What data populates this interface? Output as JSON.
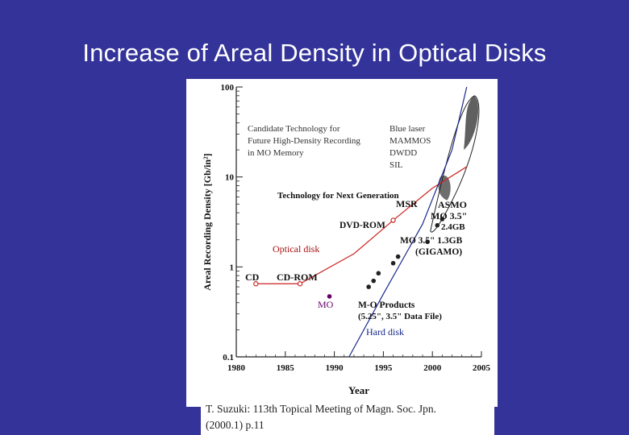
{
  "title": "Increase of Areal Density in Optical Disks",
  "citation": {
    "line1": "T. Suzuki: 113th Topical Meeting of Magn. Soc. Jpn.",
    "line2": "(2000.1) p.11"
  },
  "chart_data": {
    "type": "scatter",
    "xlabel": "Year",
    "ylabel": "Areal Recording Density  [Gb/in²]",
    "x_ticks": [
      "1980",
      "1985",
      "1990",
      "1995",
      "2000",
      "2005"
    ],
    "y_ticks": [
      "0.1",
      "1",
      "10",
      "100"
    ],
    "xlim": [
      1980,
      2005
    ],
    "ylim": [
      0.1,
      100
    ],
    "yscale": "log",
    "series": [
      {
        "name": "Optical disk",
        "color": "#cc2222",
        "points": [
          [
            1982,
            0.65
          ],
          [
            1986.5,
            0.65
          ],
          [
            1992,
            1.4
          ],
          [
            1996,
            3.3
          ],
          [
            2000,
            7.5
          ],
          [
            2003.5,
            13
          ]
        ]
      },
      {
        "name": "MO",
        "color": "#660066",
        "points": [
          [
            1989.5,
            0.47
          ],
          [
            1993.5,
            0.6
          ],
          [
            1994,
            0.7
          ],
          [
            1994.5,
            0.85
          ],
          [
            1996,
            1.1
          ],
          [
            1996.5,
            1.3
          ],
          [
            1999.5,
            1.9
          ],
          [
            2000.5,
            2.9
          ],
          [
            2001,
            3.4
          ]
        ]
      },
      {
        "name": "Hard disk",
        "color": "#1a2a8a",
        "points": [
          [
            1991.5,
            0.1
          ],
          [
            1995,
            0.5
          ],
          [
            1999,
            3
          ],
          [
            2002,
            20
          ],
          [
            2003.5,
            100
          ]
        ]
      }
    ],
    "annotations": {
      "box_title": [
        "Candidate Technology for",
        "Future High-Density Recording",
        "in MO Memory"
      ],
      "box_items": [
        "Blue laser",
        "MAMMOS",
        "DWDD",
        "SIL"
      ],
      "next_gen": "Technology for Next Generation",
      "msr": "MSR",
      "asmo": "ASMO",
      "mo35_24": [
        "MO 3.5\"",
        "2.4GB"
      ],
      "dvd_rom": "DVD-ROM",
      "mo35_13": [
        "MO 3.5\" 1.3GB",
        "(GIGAMO)"
      ],
      "optical_disk": "Optical disk",
      "cd": "CD",
      "cd_rom": "CD-ROM",
      "mo_label": "MO",
      "mo_products": [
        "M-O Products",
        "(5.25\", 3.5\" Data File)"
      ],
      "hard_disk": "Hard disk"
    }
  }
}
